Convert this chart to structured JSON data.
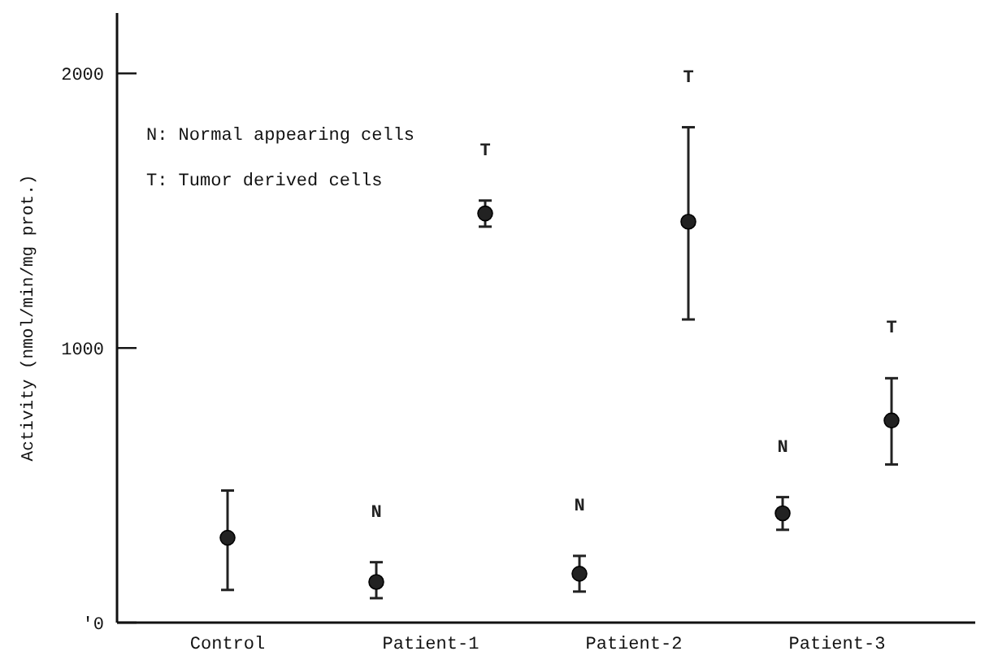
{
  "chart_data": {
    "type": "scatter",
    "ylabel": "Activity (nmol/min/mg prot.)",
    "categories": [
      "Control",
      "Patient-1",
      "Patient-2",
      "Patient-3"
    ],
    "series": [
      {
        "color": "#222222",
        "values": [
          309,
          null,
          null,
          null
        ],
        "errors": [
          [
            119,
            481
          ],
          null,
          null,
          null
        ]
      },
      {
        "name": "N",
        "color": "#222222",
        "values": [
          null,
          148,
          178,
          398
        ],
        "errors": [
          null,
          [
            89,
            220
          ],
          [
            113,
            243
          ],
          [
            338,
            457
          ]
        ]
      },
      {
        "name": "T",
        "color": "#222222",
        "values": [
          null,
          1490,
          1460,
          736
        ],
        "errors": [
          null,
          [
            1442,
            1537
          ],
          [
            1104,
            1804
          ],
          [
            576,
            890
          ]
        ]
      }
    ],
    "ylim": [
      0,
      2220
    ],
    "yticks": [
      {
        "value": 0,
        "label": "'0"
      },
      1000,
      2000
    ],
    "marker": "circle",
    "grid": false,
    "annotations": [
      "N: Normal appearing cells",
      "T: Tumor derived cells"
    ]
  }
}
